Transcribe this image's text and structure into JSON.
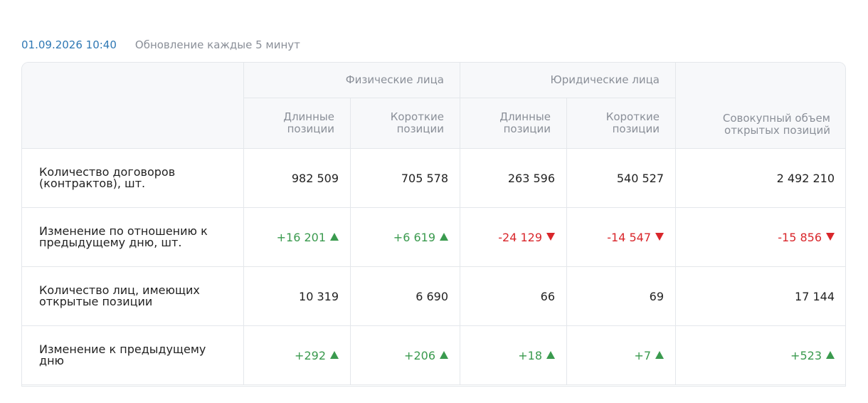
{
  "header": {
    "timestamp": "01.09.2026 10:40",
    "update_note": "Обновление каждые 5 минут"
  },
  "table": {
    "groups": [
      "Физические лица",
      "Юридические лица"
    ],
    "columns": [
      "Длинные позиции",
      "Короткие позиции",
      "Длинные позиции",
      "Короткие позиции",
      "Совокупный объем открытых позиций"
    ],
    "rows": [
      [
        "Количество договоров (контрактов), шт.",
        "982 509",
        "705 578",
        "263 596",
        "540 527",
        "2 492 210"
      ],
      [
        "Изменение по отношению к предыдущему дню, шт.",
        "+16 201",
        "+6 619",
        "-24 129",
        "-14 547",
        "-15 856"
      ],
      [
        "Количество лиц, имеющих открытые позиции",
        "10 319",
        "6 690",
        "66",
        "69",
        "17 144"
      ],
      [
        "Изменение к предыдущему дню",
        "+292",
        "+206",
        "+18",
        "+7",
        "+523"
      ]
    ]
  }
}
